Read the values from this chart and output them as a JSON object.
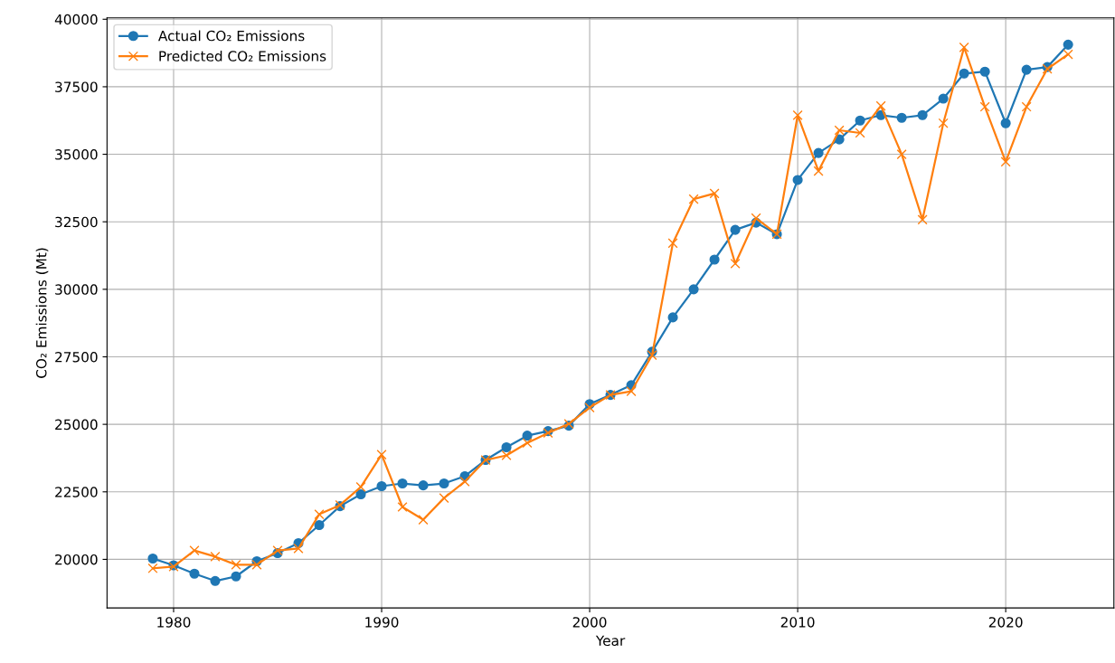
{
  "chart_data": {
    "type": "line",
    "xlabel": "Year",
    "ylabel": "CO₂ Emissions (Mt)",
    "x": [
      1979,
      1980,
      1981,
      1982,
      1983,
      1984,
      1985,
      1986,
      1987,
      1988,
      1989,
      1990,
      1991,
      1992,
      1993,
      1994,
      1995,
      1996,
      1997,
      1998,
      1999,
      2000,
      2001,
      2002,
      2003,
      2004,
      2005,
      2006,
      2007,
      2008,
      2009,
      2010,
      2011,
      2012,
      2013,
      2014,
      2015,
      2016,
      2017,
      2018,
      2019,
      2020,
      2021,
      2022,
      2023
    ],
    "series": [
      {
        "name": "Actual CO₂ Emissions",
        "color": "#1f77b4",
        "marker": "circle",
        "values": [
          20030,
          19780,
          19470,
          19200,
          19370,
          19930,
          20230,
          20600,
          21270,
          21970,
          22410,
          22710,
          22810,
          22740,
          22810,
          23080,
          23680,
          24150,
          24580,
          24750,
          24950,
          25750,
          26090,
          26450,
          27690,
          28960,
          30000,
          31100,
          32200,
          32470,
          32040,
          34050,
          35050,
          35550,
          36250,
          36450,
          36350,
          36450,
          37060,
          37990,
          38060,
          36150,
          38130,
          38230,
          39060
        ]
      },
      {
        "name": "Predicted CO₂ Emissions",
        "color": "#ff7f0e",
        "marker": "cross",
        "values": [
          19670,
          19730,
          20330,
          20100,
          19800,
          19800,
          20330,
          20400,
          21670,
          22010,
          22680,
          23880,
          21940,
          21470,
          22270,
          22880,
          23680,
          23850,
          24310,
          24680,
          25020,
          25620,
          26090,
          26220,
          27560,
          31710,
          33340,
          33550,
          30950,
          32640,
          32040,
          36450,
          34380,
          35890,
          35790,
          36790,
          35000,
          32580,
          36150,
          38960,
          36760,
          34720,
          36760,
          38160,
          38700
        ]
      }
    ],
    "xlim": [
      1976.8,
      2025.2
    ],
    "xticks": [
      1980,
      1990,
      2000,
      2010,
      2020
    ],
    "ylim": [
      18200,
      40050
    ],
    "yticks": [
      20000,
      22500,
      25000,
      27500,
      30000,
      32500,
      35000,
      37500,
      40000
    ],
    "grid": true,
    "legend": "top left",
    "line_style": "solid"
  }
}
